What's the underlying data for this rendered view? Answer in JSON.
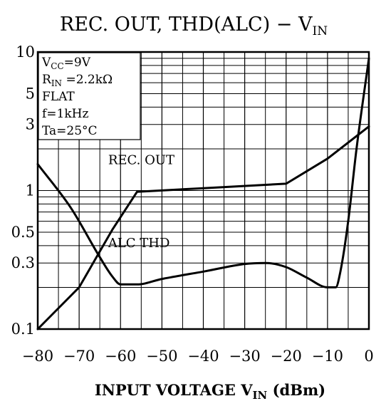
{
  "chart_data": {
    "type": "line",
    "title": {
      "text": "REC. OUT, THD(ALC) − V",
      "sub": "IN"
    },
    "xlabel": {
      "text": "INPUT VOLTAGE V",
      "sub": "IN",
      "suffix": "  (dBm)"
    },
    "ylabel": "",
    "xlim": [
      -80,
      0
    ],
    "ylim": [
      0.1,
      10
    ],
    "yscale": "log",
    "grid": true,
    "x_ticks": [
      {
        "value": -80,
        "label": "−80"
      },
      {
        "value": -70,
        "label": "−70"
      },
      {
        "value": -60,
        "label": "−60"
      },
      {
        "value": -50,
        "label": "−50"
      },
      {
        "value": -40,
        "label": "−40"
      },
      {
        "value": -30,
        "label": "−30"
      },
      {
        "value": -20,
        "label": "−20"
      },
      {
        "value": -10,
        "label": "−10"
      },
      {
        "value": 0,
        "label": "0"
      }
    ],
    "y_ticks": [
      {
        "value": 0.1,
        "label": "0.1"
      },
      {
        "value": 0.3,
        "label": "0.3"
      },
      {
        "value": 0.5,
        "label": "0.5"
      },
      {
        "value": 1,
        "label": "1"
      },
      {
        "value": 3,
        "label": "3"
      },
      {
        "value": 5,
        "label": "5"
      },
      {
        "value": 10,
        "label": "10"
      }
    ],
    "conditions": [
      {
        "main": "V",
        "sub": "CC",
        "rest": "=9V"
      },
      {
        "main": "R",
        "sub": "IN",
        "rest": " =2.2kΩ"
      },
      {
        "main": "FLAT",
        "sub": "",
        "rest": ""
      },
      {
        "main": "f=1kHz",
        "sub": "",
        "rest": ""
      },
      {
        "main": "Ta=25°C",
        "sub": "",
        "rest": ""
      }
    ],
    "series": [
      {
        "name": "REC. OUT",
        "x": [
          -80,
          -70,
          -62,
          -56,
          -40,
          -20,
          -10,
          0
        ],
        "y": [
          0.1,
          0.2,
          0.52,
          0.98,
          1.04,
          1.12,
          1.7,
          2.9
        ]
      },
      {
        "name": "ALC THD",
        "x": [
          -80,
          -72,
          -65,
          -62,
          -60,
          -56,
          -50,
          -40,
          -30,
          -25,
          -20,
          -15,
          -10,
          -8,
          -7,
          -5,
          -3,
          0
        ],
        "y": [
          1.55,
          0.75,
          0.33,
          0.24,
          0.21,
          0.21,
          0.23,
          0.26,
          0.295,
          0.3,
          0.28,
          0.235,
          0.2,
          0.2,
          0.25,
          0.6,
          2.0,
          9.0
        ]
      }
    ]
  }
}
